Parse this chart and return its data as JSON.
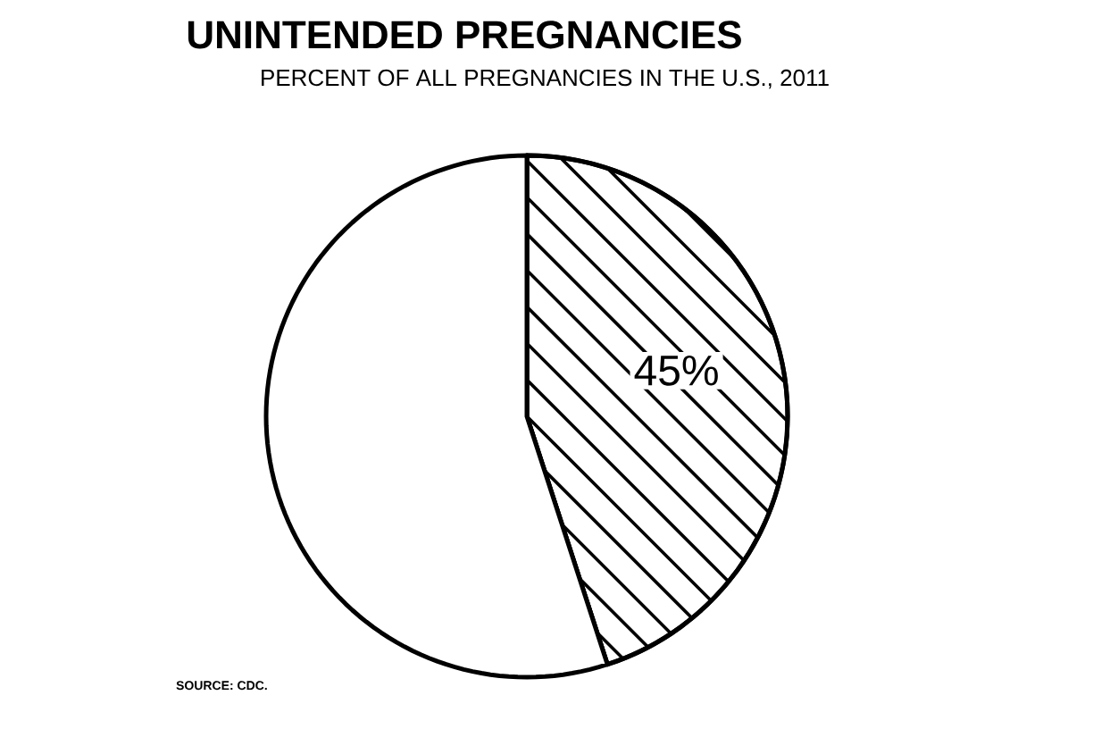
{
  "chart_data": {
    "type": "pie",
    "title": "UNINTENDED PREGNANCIES",
    "subtitle": "PERCENT OF ALL PREGNANCIES IN THE U.S., 2011",
    "categories": [
      null,
      null
    ],
    "values": [
      45,
      55
    ],
    "colors": [
      "#000000",
      "#ffffff"
    ],
    "value_labels": [
      "45%",
      null
    ],
    "annotations": [
      "SOURCE: CDC."
    ]
  }
}
